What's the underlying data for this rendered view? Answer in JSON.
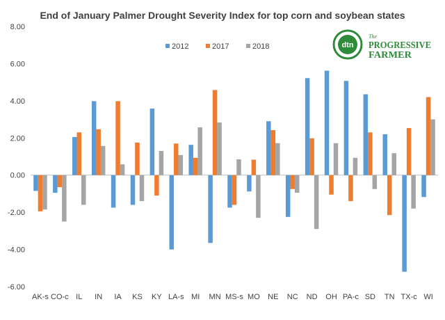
{
  "chart_data": {
    "type": "bar",
    "title": "End of January Palmer Drought Severity Index for top corn and soybean states",
    "xlabel": "",
    "ylabel": "",
    "ylim": [
      -6,
      8
    ],
    "yticks": [
      "-6.00",
      "-4.00",
      "-2.00",
      "0.00",
      "2.00",
      "4.00",
      "6.00",
      "8.00"
    ],
    "grid": false,
    "legend_position": "top-center",
    "categories": [
      "AK-s",
      "CO-c",
      "IL",
      "IN",
      "IA",
      "KS",
      "KY",
      "LA-s",
      "MI",
      "MN",
      "MS-s",
      "MO",
      "NE",
      "NC",
      "ND",
      "OH",
      "PA-c",
      "SD",
      "TN",
      "TX-c",
      "WI"
    ],
    "series": [
      {
        "name": "2012",
        "color": "#5B9BD5",
        "values": [
          -0.85,
          -0.95,
          2.05,
          3.98,
          -1.75,
          -1.6,
          3.58,
          -4.0,
          1.63,
          -3.65,
          -1.75,
          -0.88,
          2.9,
          -2.25,
          5.22,
          5.62,
          5.07,
          4.35,
          2.2,
          -5.2,
          -1.18
        ]
      },
      {
        "name": "2017",
        "color": "#ED7D31",
        "values": [
          -1.95,
          -0.65,
          2.3,
          2.47,
          3.98,
          1.75,
          -1.1,
          1.7,
          0.93,
          4.58,
          -1.6,
          0.83,
          2.42,
          -0.75,
          1.98,
          -1.05,
          -1.4,
          2.3,
          -2.15,
          2.53,
          4.2
        ]
      },
      {
        "name": "2018",
        "color": "#A5A5A5",
        "values": [
          -1.85,
          -2.5,
          -1.6,
          1.57,
          0.58,
          -1.4,
          1.3,
          1.08,
          2.57,
          2.83,
          0.85,
          -2.3,
          1.72,
          -0.95,
          -2.9,
          1.72,
          0.93,
          -0.75,
          1.18,
          -1.8,
          3.0
        ]
      }
    ]
  },
  "logo": {
    "icon": "dtn-logo-icon",
    "mark": "dtn",
    "line1": "The",
    "line2": "PROGRESSIVE",
    "line3": "FARMER"
  }
}
